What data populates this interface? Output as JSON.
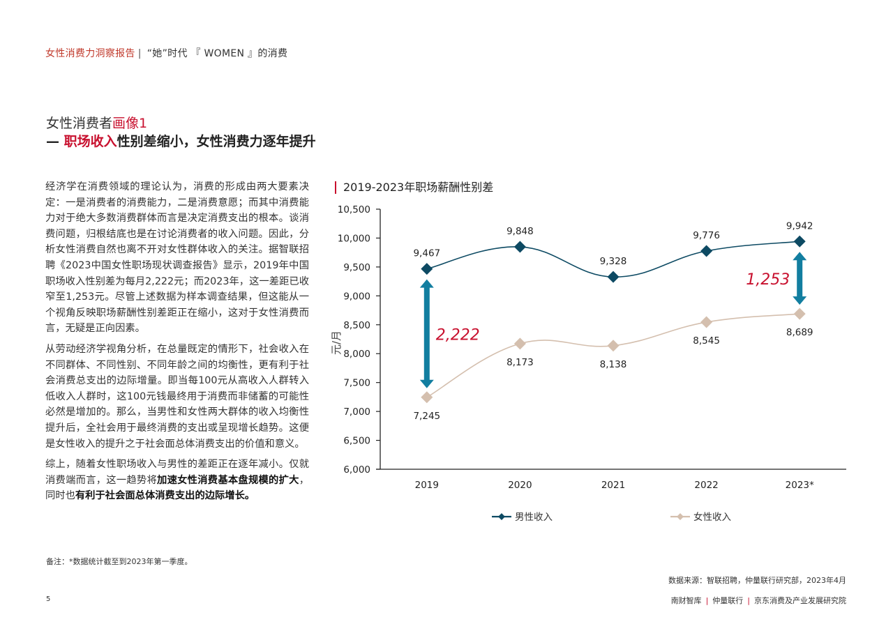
{
  "header": {
    "report_name": "女性消费力洞察报告",
    "separator": "|",
    "subtitle": "“她”时代 『 WOMEN 』的消费"
  },
  "section": {
    "title_prefix": "女性消费者",
    "title_accent": "画像1",
    "heading_dash": "— ",
    "heading_accent": "职场收入",
    "heading_rest": "性别差缩小，女性消费力逐年提升"
  },
  "body": {
    "paragraph1": "经济学在消费领域的理论认为，消费的形成由两大要素决定：一是消费者的消费能力，二是消费意愿；而其中消费能力对于绝大多数消费群体而言是决定消费支出的根本。谈消费问题，归根结底也是在讨论消费者的收入问题。因此，分析女性消费自然也离不开对女性群体收入的关注。据智联招聘《2023中国女性职场现状调查报告》显示，2019年中国职场收入性别差为每月2,222元；而2023年，这一差距已收窄至1,253元。尽管上述数据为样本调查结果，但这能从一个视角反映职场薪酬性别差距正在缩小，这对于女性消费而言，无疑是正向因素。",
    "paragraph2": "从劳动经济学视角分析，在总量既定的情形下，社会收入在不同群体、不同性别、不同年龄之间的均衡性，更有利于社会消费总支出的边际增量。即当每100元从高收入人群转入低收入人群时，这100元钱最终用于消费而非储蓄的可能性必然是增加的。那么，当男性和女性两大群体的收入均衡性提升后，全社会用于最终消费的支出或呈现增长趋势。这便是女性收入的提升之于社会面总体消费支出的价值和意义。",
    "paragraph3_a": "综上，随着女性职场收入与男性的差距正在逐年减小。仅就消费端而言，这一趋势将",
    "paragraph3_b": "加速女性消费基本盘规模的扩大",
    "paragraph3_c": "，同时也",
    "paragraph3_d": "有利于社会面总体消费支出的边际增长。",
    "note": "备注：*数据统计截至到2023年第一季度。"
  },
  "chart_data": {
    "type": "line",
    "title": "2019-2023年职场薪酬性别差",
    "categories": [
      "2019",
      "2020",
      "2021",
      "2022",
      "2023*"
    ],
    "series": [
      {
        "name": "男性收入",
        "values": [
          9467,
          9848,
          9328,
          9776,
          9942
        ],
        "color": "#0d4a63",
        "marker": "diamond"
      },
      {
        "name": "女性收入",
        "values": [
          7245,
          8173,
          8138,
          8545,
          8689
        ],
        "color": "#d4bfae",
        "marker": "diamond"
      }
    ],
    "value_labels": {
      "male": [
        "9,467",
        "9,848",
        "9,328",
        "9,776",
        "9,942"
      ],
      "female": [
        "7,245",
        "8,173",
        "8,138",
        "8,545",
        "8,689"
      ]
    },
    "annotations": [
      {
        "text": "2,222",
        "category": "2019",
        "from": 9467,
        "to": 7245,
        "color": "#c8102e"
      },
      {
        "text": "1,253",
        "category": "2023*",
        "from": 9942,
        "to": 8689,
        "color": "#c8102e"
      }
    ],
    "xlabel": "",
    "ylabel": "元/月",
    "ylim": [
      6000,
      10500
    ],
    "yticks": [
      10500,
      10000,
      9500,
      9000,
      8500,
      8000,
      7500,
      7000,
      6500,
      6000
    ],
    "ytick_labels": [
      "10,500",
      "10,000",
      "9,500",
      "9,000",
      "8,500",
      "8,000",
      "7,500",
      "7,000",
      "6,500",
      "6,000"
    ],
    "grid": false,
    "legend_position": "bottom",
    "arrow_color": "#127ea0"
  },
  "footer": {
    "source": "数据来源：智联招聘，仲量联行研究部，2023年4月",
    "page_number": "5",
    "orgs": [
      "南财智库",
      "仲量联行",
      "京东消费及产业发展研究院"
    ]
  }
}
